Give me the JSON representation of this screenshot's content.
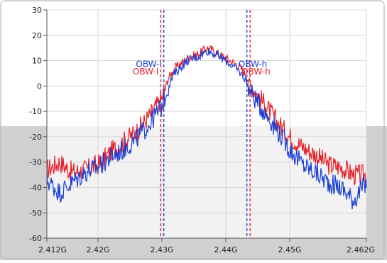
{
  "chart_data": {
    "type": "line",
    "xlim": [
      2.412,
      2.462
    ],
    "ylim": [
      -60,
      30
    ],
    "x_ticks": [
      2.412,
      2.42,
      2.43,
      2.44,
      2.45,
      2.462
    ],
    "x_tick_labels": [
      "2.412G",
      "2.42G",
      "2.43G",
      "2.44G",
      "2.45G",
      "2.462G"
    ],
    "y_ticks": [
      30,
      20,
      10,
      0,
      -10,
      -20,
      -30,
      -40,
      -50,
      -60
    ],
    "y_tick_labels": [
      "30",
      "20",
      "10",
      "0",
      "-10",
      "-20",
      "-30",
      "-40",
      "-50",
      "-60"
    ],
    "grid": true,
    "series": [
      {
        "color": "#e8202a",
        "x": [
          2.412,
          2.414,
          2.416,
          2.418,
          2.42,
          2.422,
          2.424,
          2.426,
          2.428,
          2.43,
          2.431,
          2.432,
          2.434,
          2.436,
          2.437,
          2.438,
          2.44,
          2.442,
          2.443,
          2.444,
          2.446,
          2.448,
          2.45,
          2.452,
          2.454,
          2.456,
          2.458,
          2.46,
          2.462
        ],
        "y": [
          -33,
          -30,
          -34,
          -33,
          -31,
          -26,
          -22,
          -18,
          -12,
          -5,
          3,
          7,
          11,
          13,
          15,
          14,
          11,
          8,
          5,
          0,
          -7,
          -14,
          -20,
          -24,
          -27,
          -31,
          -32,
          -35,
          -35
        ]
      },
      {
        "color": "#1a3fd6",
        "x": [
          2.412,
          2.414,
          2.416,
          2.418,
          2.42,
          2.422,
          2.424,
          2.426,
          2.428,
          2.43,
          2.431,
          2.432,
          2.434,
          2.436,
          2.437,
          2.438,
          2.44,
          2.442,
          2.443,
          2.444,
          2.446,
          2.448,
          2.45,
          2.452,
          2.454,
          2.456,
          2.458,
          2.46,
          2.462
        ],
        "y": [
          -37,
          -42,
          -38,
          -34,
          -32,
          -28,
          -25,
          -21,
          -15,
          -8,
          0,
          5,
          10,
          12,
          14,
          13,
          10,
          6,
          3,
          -3,
          -10,
          -17,
          -25,
          -31,
          -34,
          -38,
          -40,
          -45,
          -38
        ]
      }
    ],
    "markers": [
      {
        "x": 2.4303,
        "color": "#1a3fd6",
        "label": "OBW-l"
      },
      {
        "x": 2.4298,
        "color": "#e8202a",
        "label": "OBW-l"
      },
      {
        "x": 2.4433,
        "color": "#1a3fd6",
        "label": "OBW-h"
      },
      {
        "x": 2.4438,
        "color": "#e8202a",
        "label": "OBW-h"
      }
    ],
    "colors": {
      "plot_bg_upper": "#ffffff",
      "plot_bg_lower": "#f2f2f2",
      "frame_bg": "#d0d0d0",
      "grid": "#d8d8d8"
    }
  }
}
